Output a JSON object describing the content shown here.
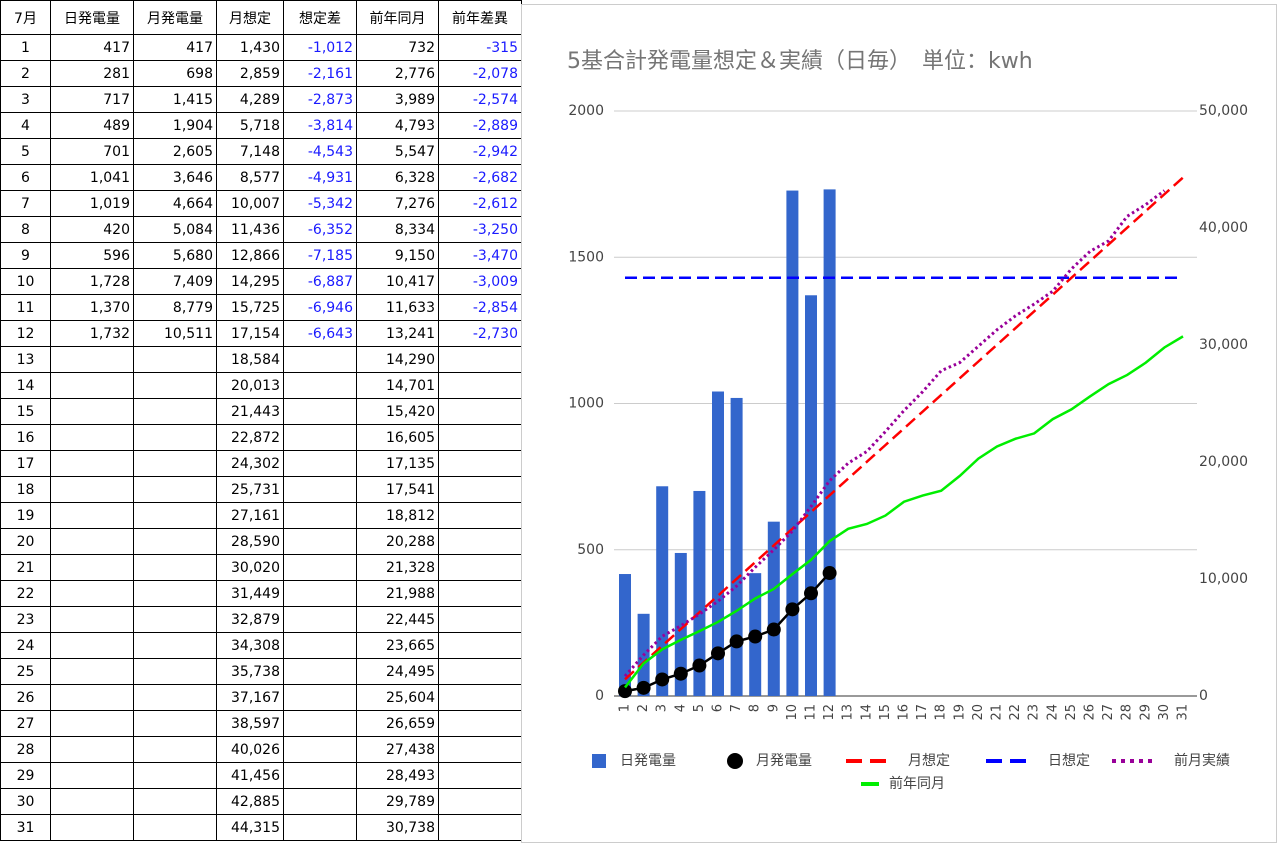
{
  "table": {
    "header": [
      "7月",
      "日発電量",
      "月発電量",
      "月想定",
      "想定差",
      "前年同月",
      "前年差異"
    ],
    "rows": [
      [
        "1",
        "417",
        "417",
        "1,430",
        "-1,012",
        "732",
        "-315"
      ],
      [
        "2",
        "281",
        "698",
        "2,859",
        "-2,161",
        "2,776",
        "-2,078"
      ],
      [
        "3",
        "717",
        "1,415",
        "4,289",
        "-2,873",
        "3,989",
        "-2,574"
      ],
      [
        "4",
        "489",
        "1,904",
        "5,718",
        "-3,814",
        "4,793",
        "-2,889"
      ],
      [
        "5",
        "701",
        "2,605",
        "7,148",
        "-4,543",
        "5,547",
        "-2,942"
      ],
      [
        "6",
        "1,041",
        "3,646",
        "8,577",
        "-4,931",
        "6,328",
        "-2,682"
      ],
      [
        "7",
        "1,019",
        "4,664",
        "10,007",
        "-5,342",
        "7,276",
        "-2,612"
      ],
      [
        "8",
        "420",
        "5,084",
        "11,436",
        "-6,352",
        "8,334",
        "-3,250"
      ],
      [
        "9",
        "596",
        "5,680",
        "12,866",
        "-7,185",
        "9,150",
        "-3,470"
      ],
      [
        "10",
        "1,728",
        "7,409",
        "14,295",
        "-6,887",
        "10,417",
        "-3,009"
      ],
      [
        "11",
        "1,370",
        "8,779",
        "15,725",
        "-6,946",
        "11,633",
        "-2,854"
      ],
      [
        "12",
        "1,732",
        "10,511",
        "17,154",
        "-6,643",
        "13,241",
        "-2,730"
      ],
      [
        "13",
        null,
        null,
        "18,584",
        null,
        "14,290",
        null
      ],
      [
        "14",
        null,
        null,
        "20,013",
        null,
        "14,701",
        null
      ],
      [
        "15",
        null,
        null,
        "21,443",
        null,
        "15,420",
        null
      ],
      [
        "16",
        null,
        null,
        "22,872",
        null,
        "16,605",
        null
      ],
      [
        "17",
        null,
        null,
        "24,302",
        null,
        "17,135",
        null
      ],
      [
        "18",
        null,
        null,
        "25,731",
        null,
        "17,541",
        null
      ],
      [
        "19",
        null,
        null,
        "27,161",
        null,
        "18,812",
        null
      ],
      [
        "20",
        null,
        null,
        "28,590",
        null,
        "20,288",
        null
      ],
      [
        "21",
        null,
        null,
        "30,020",
        null,
        "21,328",
        null
      ],
      [
        "22",
        null,
        null,
        "31,449",
        null,
        "21,988",
        null
      ],
      [
        "23",
        null,
        null,
        "32,879",
        null,
        "22,445",
        null
      ],
      [
        "24",
        null,
        null,
        "34,308",
        null,
        "23,665",
        null
      ],
      [
        "25",
        null,
        null,
        "35,738",
        null,
        "24,495",
        null
      ],
      [
        "26",
        null,
        null,
        "37,167",
        null,
        "25,604",
        null
      ],
      [
        "27",
        null,
        null,
        "38,597",
        null,
        "26,659",
        null
      ],
      [
        "28",
        null,
        null,
        "40,026",
        null,
        "27,438",
        null
      ],
      [
        "29",
        null,
        null,
        "41,456",
        null,
        "28,493",
        null
      ],
      [
        "30",
        null,
        null,
        "42,885",
        null,
        "29,789",
        null
      ],
      [
        "31",
        null,
        null,
        "44,315",
        null,
        "30,738",
        null
      ]
    ]
  },
  "chart_data": {
    "type": "combo",
    "title": "5基合計発電量想定＆実績（日毎）　単位：kwh",
    "categories": [
      "1",
      "2",
      "3",
      "4",
      "5",
      "6",
      "7",
      "8",
      "9",
      "10",
      "11",
      "12",
      "13",
      "14",
      "15",
      "16",
      "17",
      "18",
      "19",
      "20",
      "21",
      "22",
      "23",
      "24",
      "25",
      "26",
      "27",
      "28",
      "29",
      "30",
      "31"
    ],
    "ylim": [
      0,
      2000
    ],
    "yticks": [
      0,
      500,
      1000,
      1500,
      2000
    ],
    "y2lim": [
      0,
      50000
    ],
    "y2ticks": [
      0,
      {
        "value": 10000,
        "label": "10,000"
      },
      {
        "value": 20000,
        "label": "20,000"
      },
      {
        "value": 30000,
        "label": "30,000"
      },
      {
        "value": 40000,
        "label": "40,000"
      },
      {
        "value": 50000,
        "label": "50,000"
      }
    ],
    "grid": true,
    "legend": "bottom",
    "series": [
      {
        "name": "日発電量",
        "color": "#3366cc",
        "kind": "bar",
        "values": [
          417,
          281,
          717,
          489,
          701,
          1041,
          1019,
          420,
          596,
          1728,
          1370,
          1732,
          null,
          null,
          null,
          null,
          null,
          null,
          null,
          null,
          null,
          null,
          null,
          null,
          null,
          null,
          null,
          null,
          null,
          null,
          null
        ]
      },
      {
        "name": "月発電量",
        "color": "#000000",
        "kind": "line",
        "dash": "solid",
        "markers": true,
        "axis": "y2",
        "values": [
          417,
          698,
          1415,
          1904,
          2605,
          3646,
          4664,
          5084,
          5680,
          7409,
          8779,
          10511,
          null,
          null,
          null,
          null,
          null,
          null,
          null,
          null,
          null,
          null,
          null,
          null,
          null,
          null,
          null,
          null,
          null,
          null,
          null
        ]
      },
      {
        "name": "月想定",
        "color": "#ff0000",
        "kind": "line",
        "dash": "dashed",
        "axis": "y2",
        "values": [
          1430,
          2859,
          4289,
          5718,
          7148,
          8577,
          10007,
          11436,
          12866,
          14295,
          15725,
          17154,
          18584,
          20013,
          21443,
          22872,
          24302,
          25731,
          27161,
          28590,
          30020,
          31449,
          32879,
          34308,
          35738,
          37167,
          38597,
          40026,
          41456,
          42885,
          44315
        ]
      },
      {
        "name": "日想定",
        "color": "#0000ff",
        "kind": "line",
        "dash": "dashed",
        "values": [
          1430,
          1430,
          1430,
          1430,
          1430,
          1430,
          1430,
          1430,
          1430,
          1430,
          1430,
          1430,
          1430,
          1430,
          1430,
          1430,
          1430,
          1430,
          1430,
          1430,
          1430,
          1430,
          1430,
          1430,
          1430,
          1430,
          1430,
          1430,
          1430,
          1430,
          1430
        ]
      },
      {
        "name": "前月実績",
        "color": "#990099",
        "kind": "line",
        "dash": "dotted",
        "axis": "y2",
        "values": [
          1700,
          3500,
          5100,
          6000,
          7000,
          8100,
          9400,
          11000,
          12500,
          14100,
          16200,
          18400,
          19900,
          20900,
          22600,
          24400,
          26000,
          27800,
          28500,
          29900,
          31300,
          32500,
          33500,
          34600,
          36500,
          38000,
          38900,
          41000,
          42000,
          43200,
          null
        ]
      },
      {
        "name": "前年同月",
        "color": "#00ee00",
        "kind": "line",
        "dash": "solid",
        "axis": "y2",
        "values": [
          732,
          2776,
          3989,
          4793,
          5547,
          6328,
          7276,
          8334,
          9150,
          10417,
          11633,
          13241,
          14290,
          14701,
          15420,
          16605,
          17135,
          17541,
          18812,
          20288,
          21328,
          21988,
          22445,
          23665,
          24495,
          25604,
          26659,
          27438,
          28493,
          29789,
          30738
        ]
      }
    ]
  }
}
